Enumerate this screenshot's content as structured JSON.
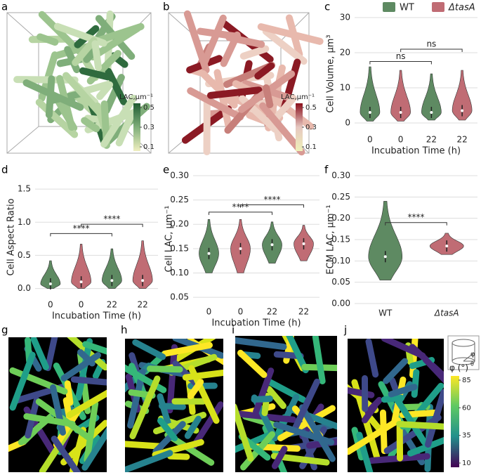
{
  "panel_labels": [
    "a",
    "b",
    "c",
    "d",
    "e",
    "f",
    "g",
    "h",
    "i",
    "j"
  ],
  "render_a": {
    "colorbar_label": "LAC,µm⁻¹",
    "colorbar_ticks": [
      0.5,
      0.3,
      0.1
    ]
  },
  "render_b": {
    "colorbar_label": "LAC,µm⁻¹",
    "colorbar_ticks": [
      0.5,
      0.3,
      0.1
    ]
  },
  "orientation": {
    "colorbar_label": "φ (°)",
    "colorbar_ticks": [
      85,
      60,
      35,
      10
    ],
    "inset_labels": [
      "φ",
      "θ"
    ]
  },
  "chart_data": [
    {
      "type": "violin",
      "ylabel": "Cell Volume, µm³",
      "xlabel": "Incubation Time (h)",
      "categories": [
        "0",
        "0",
        "22",
        "22"
      ],
      "colors": [
        "#5e8a62",
        "#c06c74",
        "#5e8a62",
        "#c06c74"
      ],
      "mins": [
        0.5,
        0.5,
        0.8,
        0.8
      ],
      "medians": [
        3,
        3,
        3,
        3.5
      ],
      "maxs": [
        16,
        15,
        14,
        15
      ],
      "ylim": [
        -2,
        30
      ],
      "yticks": [
        0,
        10,
        20,
        30
      ],
      "brackets": [
        {
          "label": "ns",
          "y": 17.5
        },
        {
          "label": "ns",
          "y": 21
        }
      ],
      "legend": [
        {
          "name": "WT",
          "color": "#5e8a62"
        },
        {
          "name": "ΔtasA",
          "color": "#c06c74"
        }
      ]
    },
    {
      "type": "violin",
      "ylabel": "Cell Aspect Ratio",
      "xlabel": "Incubation Time (h)",
      "categories": [
        "0",
        "0",
        "22",
        "22"
      ],
      "colors": [
        "#5e8a62",
        "#c06c74",
        "#5e8a62",
        "#c06c74"
      ],
      "mins": [
        0,
        0,
        0,
        0
      ],
      "medians": [
        0.07,
        0.1,
        0.12,
        0.12
      ],
      "maxs": [
        0.42,
        0.67,
        0.6,
        0.72
      ],
      "ylim": [
        -0.1,
        1.65
      ],
      "yticks": [
        {
          "value": 0,
          "label": "0.0"
        },
        0.5,
        {
          "value": 1,
          "label": "1.0"
        },
        1.5
      ],
      "brackets": [
        {
          "label": "****",
          "y": 0.83
        },
        {
          "label": "****",
          "y": 0.97
        }
      ]
    },
    {
      "type": "violin",
      "ylabel": "Cell LAC, µm⁻¹",
      "xlabel": "Incubation Time (h)",
      "categories": [
        "0",
        "0",
        "22",
        "22"
      ],
      "colors": [
        "#5e8a62",
        "#c06c74",
        "#5e8a62",
        "#c06c74"
      ],
      "mins": [
        0.1,
        0.1,
        0.12,
        0.125
      ],
      "medians": [
        0.14,
        0.15,
        0.158,
        0.16
      ],
      "maxs": [
        0.21,
        0.21,
        0.205,
        0.198
      ],
      "ylim": [
        0.04,
        0.3
      ],
      "yticks": [
        0.05,
        {
          "value": 0.1,
          "label": "0.10"
        },
        0.15,
        {
          "value": 0.2,
          "label": "0.20"
        },
        0.25,
        {
          "value": 0.3,
          "label": "0.30"
        }
      ],
      "brackets": [
        {
          "label": "****",
          "y": 0.225
        },
        {
          "label": "****",
          "y": 0.24
        }
      ]
    },
    {
      "type": "violin",
      "ylabel": "ECM LAC, µm⁻¹",
      "categories": [
        "WT",
        "ΔtasA"
      ],
      "colors": [
        "#5e8a62",
        "#c06c74"
      ],
      "mins": [
        0.055,
        0.115
      ],
      "medians": [
        0.11,
        0.135
      ],
      "maxs": [
        0.24,
        0.165
      ],
      "ylim": [
        0,
        0.3
      ],
      "yticks": [
        {
          "value": 0,
          "label": "0.00"
        },
        0.05,
        {
          "value": 0.1,
          "label": "0.10"
        },
        0.15,
        {
          "value": 0.2,
          "label": "0.20"
        },
        0.25,
        {
          "value": 0.3,
          "label": "0.30"
        }
      ],
      "brackets": [
        {
          "label": "****",
          "y": 0.19
        }
      ]
    }
  ]
}
